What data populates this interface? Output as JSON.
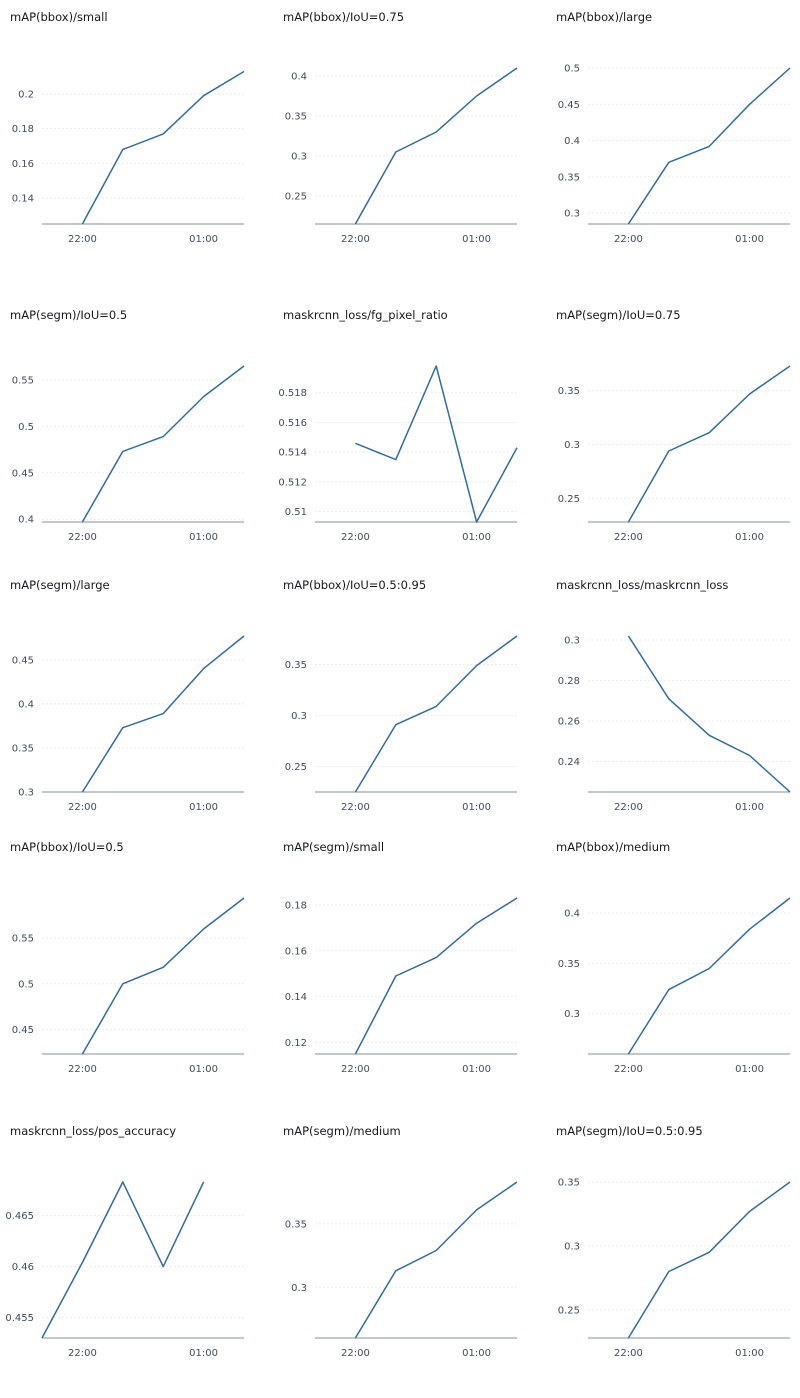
{
  "x_tick_labels": [
    "22:00",
    "01:00"
  ],
  "series_color": "#2e6da4",
  "chart_data": [
    {
      "type": "line",
      "title": "mAP(bbox)/small",
      "x": [
        "21:00",
        "22:00",
        "23:00",
        "00:00",
        "01:00",
        "02:00"
      ],
      "yticks": [
        0.14,
        0.16,
        0.18,
        0.2
      ],
      "ylim": [
        0.125,
        0.215
      ],
      "series": [
        {
          "values": [
            null,
            0.125,
            0.168,
            0.177,
            0.199,
            0.213
          ]
        }
      ],
      "grid": true
    },
    {
      "type": "line",
      "title": "mAP(bbox)/IoU=0.75",
      "x": [
        "21:00",
        "22:00",
        "23:00",
        "00:00",
        "01:00",
        "02:00"
      ],
      "yticks": [
        0.25,
        0.3,
        0.35,
        0.4
      ],
      "ylim": [
        0.215,
        0.41
      ],
      "series": [
        {
          "values": [
            null,
            0.215,
            0.305,
            0.33,
            0.375,
            0.41
          ]
        }
      ],
      "grid": true
    },
    {
      "type": "line",
      "title": "mAP(bbox)/large",
      "x": [
        "21:00",
        "22:00",
        "23:00",
        "00:00",
        "01:00",
        "02:00"
      ],
      "yticks": [
        0.3,
        0.35,
        0.4,
        0.45,
        0.5
      ],
      "ylim": [
        0.285,
        0.5
      ],
      "series": [
        {
          "values": [
            null,
            0.285,
            0.37,
            0.392,
            0.45,
            0.5
          ]
        }
      ],
      "grid": true
    },
    {
      "type": "line",
      "title": "mAP(segm)/IoU=0.5",
      "x": [
        "21:00",
        "22:00",
        "23:00",
        "00:00",
        "01:00",
        "02:00"
      ],
      "yticks": [
        0.4,
        0.45,
        0.5,
        0.55
      ],
      "ylim": [
        0.397,
        0.565
      ],
      "series": [
        {
          "values": [
            null,
            0.397,
            0.473,
            0.489,
            0.532,
            0.565
          ]
        }
      ],
      "grid": true
    },
    {
      "type": "line",
      "title": "maskrcnn_loss/fg_pixel_ratio",
      "x": [
        "21:00",
        "22:00",
        "23:00",
        "00:00",
        "01:00",
        "02:00"
      ],
      "yticks": [
        0.51,
        0.512,
        0.514,
        0.516,
        0.518
      ],
      "ylim": [
        0.5093,
        0.5198
      ],
      "series": [
        {
          "values": [
            null,
            0.5146,
            0.5135,
            0.5198,
            0.5093,
            0.5143
          ]
        }
      ],
      "grid": true
    },
    {
      "type": "line",
      "title": "mAP(segm)/IoU=0.75",
      "x": [
        "21:00",
        "22:00",
        "23:00",
        "00:00",
        "01:00",
        "02:00"
      ],
      "yticks": [
        0.25,
        0.3,
        0.35
      ],
      "ylim": [
        0.228,
        0.373
      ],
      "series": [
        {
          "values": [
            null,
            0.228,
            0.294,
            0.311,
            0.347,
            0.373
          ]
        }
      ],
      "grid": true
    },
    {
      "type": "line",
      "title": "mAP(segm)/large",
      "x": [
        "21:00",
        "22:00",
        "23:00",
        "00:00",
        "01:00",
        "02:00"
      ],
      "yticks": [
        0.3,
        0.35,
        0.4,
        0.45
      ],
      "ylim": [
        0.3,
        0.477
      ],
      "series": [
        {
          "values": [
            null,
            0.3,
            0.373,
            0.389,
            0.44,
            0.477
          ]
        }
      ],
      "grid": true
    },
    {
      "type": "line",
      "title": "mAP(bbox)/IoU=0.5:0.95",
      "x": [
        "21:00",
        "22:00",
        "23:00",
        "00:00",
        "01:00",
        "02:00"
      ],
      "yticks": [
        0.25,
        0.3,
        0.35
      ],
      "ylim": [
        0.225,
        0.378
      ],
      "series": [
        {
          "values": [
            null,
            0.225,
            0.291,
            0.309,
            0.349,
            0.378
          ]
        }
      ],
      "grid": true
    },
    {
      "type": "line",
      "title": "maskrcnn_loss/maskrcnn_loss",
      "x": [
        "21:00",
        "22:00",
        "23:00",
        "00:00",
        "01:00",
        "02:00"
      ],
      "yticks": [
        0.24,
        0.26,
        0.28,
        0.3
      ],
      "ylim": [
        0.225,
        0.302
      ],
      "series": [
        {
          "values": [
            null,
            0.302,
            0.271,
            0.253,
            0.243,
            0.225
          ]
        }
      ],
      "grid": true
    },
    {
      "type": "line",
      "title": "mAP(bbox)/IoU=0.5",
      "x": [
        "21:00",
        "22:00",
        "23:00",
        "00:00",
        "01:00",
        "02:00"
      ],
      "yticks": [
        0.45,
        0.5,
        0.55
      ],
      "ylim": [
        0.423,
        0.594
      ],
      "series": [
        {
          "values": [
            null,
            0.423,
            0.5,
            0.518,
            0.56,
            0.594
          ]
        }
      ],
      "grid": true
    },
    {
      "type": "line",
      "title": "mAP(segm)/small",
      "x": [
        "21:00",
        "22:00",
        "23:00",
        "00:00",
        "01:00",
        "02:00"
      ],
      "yticks": [
        0.12,
        0.14,
        0.16,
        0.18
      ],
      "ylim": [
        0.115,
        0.183
      ],
      "series": [
        {
          "values": [
            null,
            0.115,
            0.149,
            0.157,
            0.172,
            0.183
          ]
        }
      ],
      "grid": true
    },
    {
      "type": "line",
      "title": "mAP(bbox)/medium",
      "x": [
        "21:00",
        "22:00",
        "23:00",
        "00:00",
        "01:00",
        "02:00"
      ],
      "yticks": [
        0.3,
        0.35,
        0.4
      ],
      "ylim": [
        0.26,
        0.415
      ],
      "series": [
        {
          "values": [
            null,
            0.26,
            0.324,
            0.345,
            0.384,
            0.415
          ]
        }
      ],
      "grid": true
    },
    {
      "type": "line",
      "title": "maskrcnn_loss/pos_accuracy",
      "x": [
        "21:00",
        "22:00",
        "23:00",
        "00:00",
        "01:00",
        "02:00"
      ],
      "yticks": [
        0.455,
        0.46,
        0.465
      ],
      "ylim": [
        0.453,
        0.4683
      ],
      "series": [
        {
          "values": [
            0.453,
            0.4604,
            0.4683,
            0.46,
            0.4683,
            null
          ]
        }
      ],
      "grid": true
    },
    {
      "type": "line",
      "title": "mAP(segm)/medium",
      "x": [
        "21:00",
        "22:00",
        "23:00",
        "00:00",
        "01:00",
        "02:00"
      ],
      "yticks": [
        0.3,
        0.35
      ],
      "ylim": [
        0.26,
        0.383
      ],
      "series": [
        {
          "values": [
            null,
            0.26,
            0.313,
            0.329,
            0.361,
            0.383
          ]
        }
      ],
      "grid": true
    },
    {
      "type": "line",
      "title": "mAP(segm)/IoU=0.5:0.95",
      "x": [
        "21:00",
        "22:00",
        "23:00",
        "00:00",
        "01:00",
        "02:00"
      ],
      "yticks": [
        0.25,
        0.3,
        0.35
      ],
      "ylim": [
        0.228,
        0.35
      ],
      "series": [
        {
          "values": [
            null,
            0.228,
            0.28,
            0.295,
            0.327,
            0.35
          ]
        }
      ],
      "grid": true
    }
  ]
}
